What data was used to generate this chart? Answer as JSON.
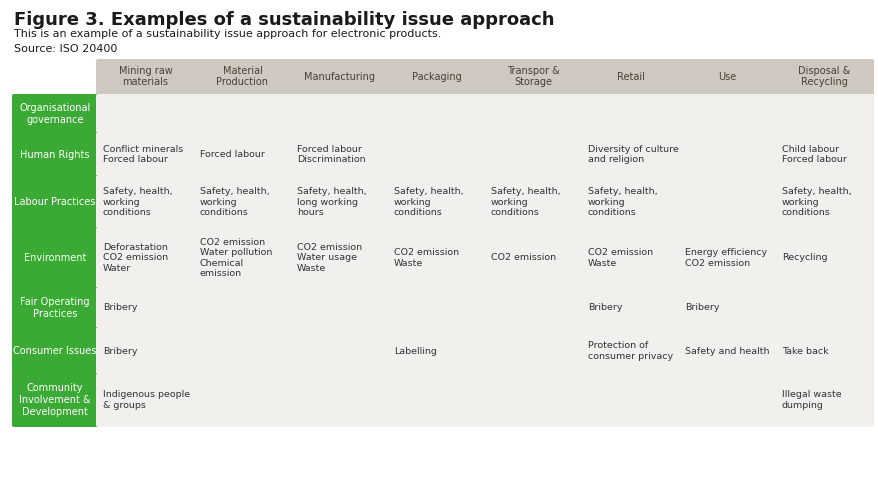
{
  "title": "Figure 3. Examples of a sustainability issue approach",
  "subtitle": "This is an example of a sustainability issue approach for electronic products.\nSource: ISO 20400",
  "bg_color": "#ffffff",
  "header_bg": "#cec8c0",
  "row_label_bg": "#3aaa35",
  "row_label_text": "#ffffff",
  "cell_bg": "#f2f0ed",
  "col_headers": [
    "Mining raw\nmaterials",
    "Material\nProduction",
    "Manufacturing",
    "Packaging",
    "Transpor &\nStorage",
    "Retail",
    "Use",
    "Disposal &\nRecycling"
  ],
  "row_labels": [
    "Organisational\ngovernance",
    "Human Rights",
    "Labour Practices",
    "Environment",
    "Fair Operating\nPractices",
    "Consumer Issues",
    "Community\nInvolvement &\nDevelopment"
  ],
  "cells": [
    [
      "",
      "",
      "",
      "",
      "",
      "",
      "",
      ""
    ],
    [
      "Conflict minerals\nForced labour",
      "Forced labour",
      "Forced labour\nDiscrimination",
      "",
      "",
      "Diversity of culture\nand religion",
      "",
      "Child labour\nForced labour"
    ],
    [
      "Safety, health,\nworking\nconditions",
      "Safety, health,\nworking\nconditions",
      "Safety, health,\nlong working\nhours",
      "Safety, health,\nworking\nconditions",
      "Safety, health,\nworking\nconditions",
      "Safety, health,\nworking\nconditions",
      "",
      "Safety, health,\nworking\nconditions"
    ],
    [
      "Deforastation\nCO2 emission\nWater",
      "CO2 emission\nWater pollution\nChemical\nemission",
      "CO2 emission\nWater usage\nWaste",
      "CO2 emission\nWaste",
      "CO2 emission",
      "CO2 emission\nWaste",
      "Energy efficiency\nCO2 emission",
      "Recycling"
    ],
    [
      "Bribery",
      "",
      "",
      "",
      "",
      "Bribery",
      "Bribery",
      ""
    ],
    [
      "Bribery",
      "",
      "",
      "Labelling",
      "",
      "Protection of\nconsumer privacy",
      "Safety and health",
      "Take back"
    ],
    [
      "Indigenous people\n& groups",
      "",
      "",
      "",
      "",
      "",
      "",
      "Illegal waste\ndumping"
    ]
  ],
  "title_fontsize": 13,
  "subtitle_fontsize": 8,
  "header_fontsize": 7,
  "cell_fontsize": 6.8,
  "label_fontsize": 7
}
